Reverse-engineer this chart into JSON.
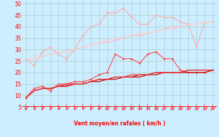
{
  "xlabel": "Vent moyen/en rafales ( km/h )",
  "bg_color": "#cceeff",
  "grid_color": "#aacccc",
  "x_ticks": [
    0,
    1,
    2,
    3,
    4,
    5,
    6,
    7,
    8,
    9,
    10,
    11,
    12,
    13,
    14,
    15,
    16,
    17,
    18,
    19,
    20,
    21,
    22,
    23
  ],
  "yticks": [
    5,
    10,
    15,
    20,
    25,
    30,
    35,
    40,
    45,
    50
  ],
  "ylim": [
    5,
    51
  ],
  "xlim": [
    -0.5,
    23.5
  ],
  "lines": [
    {
      "color": "#ffaaaa",
      "linewidth": 0.8,
      "marker": "D",
      "markersize": 1.5,
      "y": [
        26,
        23,
        29,
        31,
        28,
        26,
        30,
        36,
        40,
        41,
        46,
        46,
        48,
        44,
        41,
        41,
        45,
        44,
        44,
        42,
        41,
        31,
        42,
        42
      ]
    },
    {
      "color": "#ffbbbb",
      "linewidth": 0.9,
      "marker": null,
      "markersize": 0,
      "y": [
        26,
        26,
        27,
        28,
        29,
        29,
        30,
        31,
        32,
        33,
        33,
        34,
        35,
        36,
        36,
        37,
        38,
        39,
        40,
        40,
        41,
        41,
        42,
        42
      ]
    },
    {
      "color": "#ffcccc",
      "linewidth": 0.9,
      "marker": null,
      "markersize": 0,
      "y": [
        26,
        26,
        27,
        28,
        29,
        29,
        30,
        31,
        32,
        33,
        34,
        35,
        35,
        36,
        37,
        37,
        38,
        39,
        39,
        40,
        41,
        41,
        42,
        42
      ]
    },
    {
      "color": "#ff4444",
      "linewidth": 0.8,
      "marker": "D",
      "markersize": 1.5,
      "y": [
        9,
        13,
        14,
        12,
        15,
        15,
        16,
        16,
        17,
        19,
        20,
        28,
        26,
        26,
        24,
        28,
        29,
        26,
        26,
        21,
        20,
        20,
        20,
        21
      ]
    },
    {
      "color": "#cc0000",
      "linewidth": 0.9,
      "marker": null,
      "markersize": 0,
      "y": [
        9,
        12,
        13,
        13,
        14,
        14,
        15,
        15,
        16,
        16,
        17,
        17,
        18,
        18,
        18,
        19,
        19,
        20,
        20,
        20,
        20,
        20,
        20,
        21
      ]
    },
    {
      "color": "#dd1111",
      "linewidth": 0.9,
      "marker": null,
      "markersize": 0,
      "y": [
        9,
        12,
        13,
        13,
        14,
        14,
        15,
        15,
        16,
        17,
        17,
        18,
        18,
        18,
        19,
        19,
        20,
        20,
        20,
        20,
        21,
        21,
        21,
        21
      ]
    },
    {
      "color": "#ee3333",
      "linewidth": 0.9,
      "marker": null,
      "markersize": 0,
      "y": [
        9,
        12,
        13,
        13,
        14,
        15,
        15,
        15,
        16,
        17,
        17,
        18,
        18,
        19,
        19,
        19,
        20,
        20,
        20,
        20,
        21,
        21,
        21,
        21
      ]
    }
  ]
}
